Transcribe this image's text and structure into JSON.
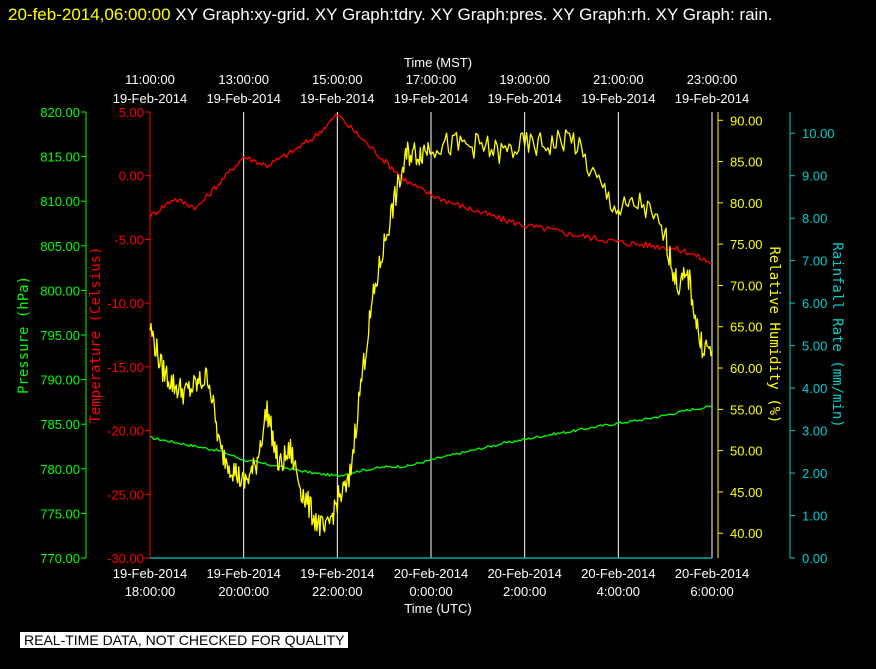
{
  "title": {
    "timestamp": "20-feb-2014,06:00:00",
    "text": "XY Graph:xy-grid.  XY Graph:tdry.  XY Graph:pres.  XY Graph:rh.  XY Graph: rain."
  },
  "disclaimer": "REAL-TIME DATA, NOT CHECKED FOR QUALITY",
  "colors": {
    "background": "#000000",
    "pressure": "#00ff00",
    "temperature": "#ff0000",
    "humidity": "#ffff00",
    "rain": "#00cccc",
    "grid": "#ffffff"
  },
  "chart_data": {
    "type": "line",
    "grid": true,
    "top_axis": {
      "label": "Time (MST)",
      "ticks": [
        {
          "time": "11:00:00",
          "date": "19-Feb-2014"
        },
        {
          "time": "13:00:00",
          "date": "19-Feb-2014"
        },
        {
          "time": "15:00:00",
          "date": "19-Feb-2014"
        },
        {
          "time": "17:00:00",
          "date": "19-Feb-2014"
        },
        {
          "time": "19:00:00",
          "date": "19-Feb-2014"
        },
        {
          "time": "21:00:00",
          "date": "19-Feb-2014"
        },
        {
          "time": "23:00:00",
          "date": "19-Feb-2014"
        }
      ]
    },
    "bottom_axis": {
      "label": "Time (UTC)",
      "ticks": [
        {
          "date": "19-Feb-2014",
          "time": "18:00:00"
        },
        {
          "date": "19-Feb-2014",
          "time": "20:00:00"
        },
        {
          "date": "19-Feb-2014",
          "time": "22:00:00"
        },
        {
          "date": "20-Feb-2014",
          "time": "0:00:00"
        },
        {
          "date": "20-Feb-2014",
          "time": "2:00:00"
        },
        {
          "date": "20-Feb-2014",
          "time": "4:00:00"
        },
        {
          "date": "20-Feb-2014",
          "time": "6:00:00"
        }
      ],
      "range_hours_utc": [
        18,
        30
      ]
    },
    "y_axes": [
      {
        "key": "pressure",
        "label": "Pressure (hPa)",
        "ylim": [
          770,
          820
        ],
        "ticks": [
          "770.00",
          "775.00",
          "780.00",
          "785.00",
          "790.00",
          "795.00",
          "800.00",
          "805.00",
          "810.00",
          "815.00",
          "820.00"
        ]
      },
      {
        "key": "temperature",
        "label": "Temperature (Celsius)",
        "ylim": [
          -30,
          5
        ],
        "ticks": [
          "-30.00",
          "-25.00",
          "-20.00",
          "-15.00",
          "-10.00",
          "-5.00",
          "0.00",
          "5.00"
        ]
      },
      {
        "key": "humidity",
        "label": "Relative Humidity (%)",
        "ylim": [
          37,
          91
        ],
        "ticks": [
          "40.00",
          "45.00",
          "50.00",
          "55.00",
          "60.00",
          "65.00",
          "70.00",
          "75.00",
          "80.00",
          "85.00",
          "90.00"
        ]
      },
      {
        "key": "rain",
        "label": "Rainfall Rate (mm/min)",
        "ylim": [
          0,
          10.5
        ],
        "ticks": [
          "0.00",
          "1.00",
          "2.00",
          "3.00",
          "4.00",
          "5.00",
          "6.00",
          "7.00",
          "8.00",
          "9.00",
          "10.00"
        ]
      }
    ],
    "series": [
      {
        "name": "pres",
        "axis": "pressure",
        "x": [
          18,
          18.5,
          19,
          19.5,
          20,
          20.5,
          21,
          21.5,
          22,
          22.5,
          23,
          23.5,
          24,
          24.5,
          25,
          25.5,
          26,
          26.5,
          27,
          27.5,
          28,
          28.5,
          29,
          29.5,
          30
        ],
        "values": [
          783.5,
          783.0,
          782.5,
          782.0,
          781.0,
          780.5,
          780.0,
          779.5,
          779.2,
          779.8,
          780.2,
          780.3,
          781.0,
          781.6,
          782.2,
          782.8,
          783.3,
          783.8,
          784.2,
          784.7,
          785.1,
          785.5,
          786.0,
          786.6,
          787.0
        ]
      },
      {
        "name": "tdry",
        "axis": "temperature",
        "x": [
          18,
          18.5,
          19,
          19.5,
          20,
          20.5,
          21,
          21.5,
          22,
          22.5,
          23,
          23.5,
          24,
          24.5,
          25,
          25.5,
          26,
          26.5,
          27,
          27.5,
          28,
          28.5,
          29,
          29.5,
          30
        ],
        "values": [
          -3.2,
          -1.8,
          -2.5,
          -0.5,
          1.5,
          0.8,
          1.8,
          3.0,
          4.8,
          3.0,
          1.2,
          -0.5,
          -1.5,
          -2.2,
          -2.8,
          -3.4,
          -3.9,
          -4.2,
          -4.6,
          -4.9,
          -5.2,
          -5.4,
          -5.6,
          -6.0,
          -6.9
        ]
      },
      {
        "name": "rh",
        "axis": "humidity",
        "x": [
          18,
          18.25,
          18.5,
          18.75,
          19,
          19.25,
          19.5,
          19.75,
          20,
          20.25,
          20.5,
          20.75,
          21,
          21.25,
          21.5,
          21.75,
          22,
          22.25,
          22.5,
          22.75,
          23,
          23.25,
          23.5,
          23.75,
          24,
          24.5,
          25,
          25.5,
          26,
          26.5,
          27,
          27.5,
          28,
          28.5,
          29,
          29.25,
          29.5,
          29.75,
          30
        ],
        "values": [
          65,
          60,
          58,
          57,
          58,
          59,
          50,
          48,
          46,
          48,
          55,
          48,
          50,
          45,
          42,
          40,
          44,
          46,
          58,
          68,
          75,
          81,
          86,
          86,
          87,
          87,
          87,
          86,
          87,
          87,
          88,
          83,
          79,
          80,
          76,
          70,
          71,
          63,
          62
        ]
      },
      {
        "name": "rain",
        "axis": "rain",
        "x": [
          18,
          30
        ],
        "values": [
          0,
          0
        ]
      }
    ]
  }
}
